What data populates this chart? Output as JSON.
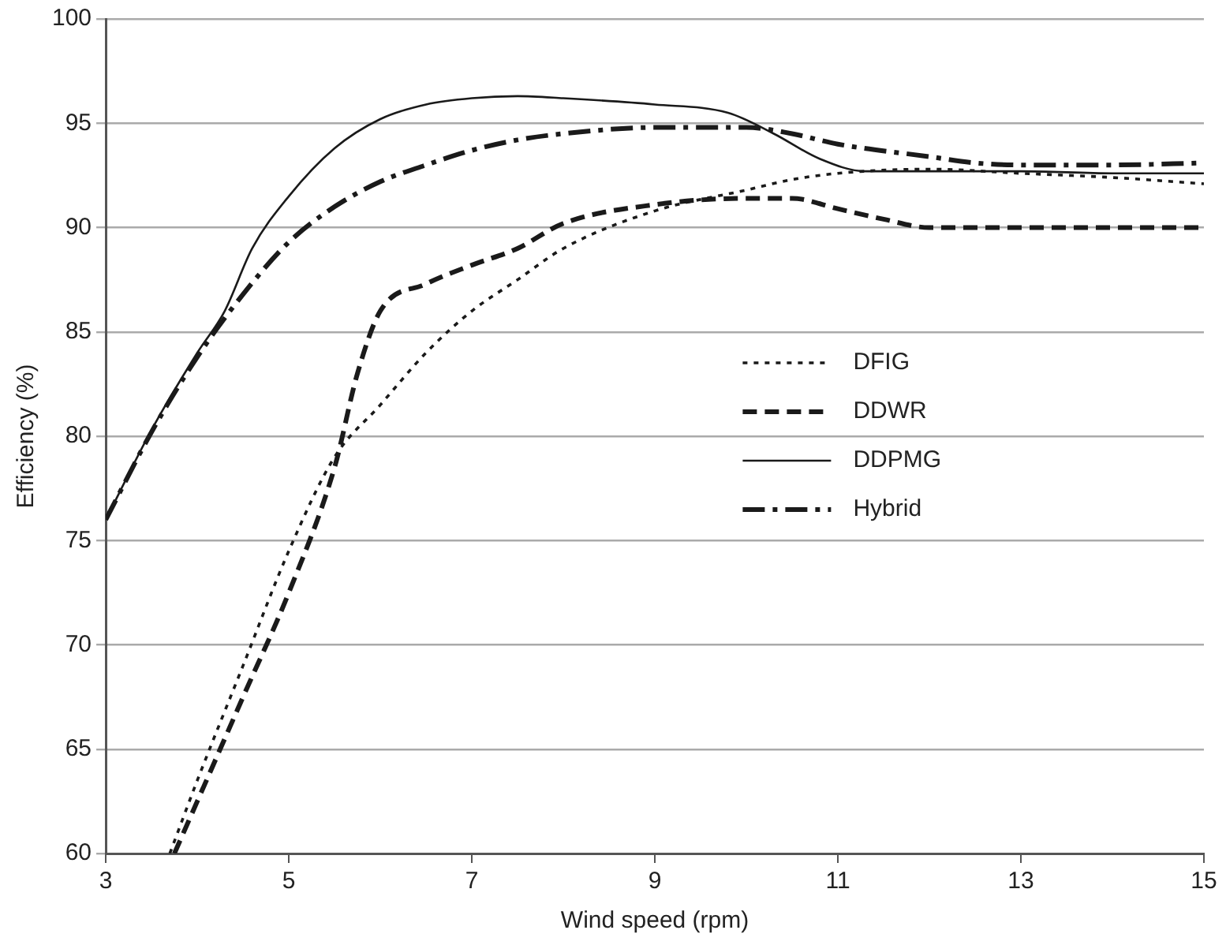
{
  "chart_data": {
    "type": "line",
    "xlabel": "Wind speed (rpm)",
    "ylabel": "Efficiency (%)",
    "xlim": [
      3,
      15
    ],
    "xticks": [
      3,
      5,
      7,
      9,
      11,
      13,
      15
    ],
    "ylim": [
      60,
      100
    ],
    "yticks": [
      60,
      65,
      70,
      75,
      80,
      85,
      90,
      95,
      100
    ],
    "grid": "y",
    "legend": "right",
    "marker": "none",
    "series": [
      {
        "name": "DFIG",
        "color": "#1a1a1a",
        "line_style": "dotted",
        "x": [
          3.7,
          4,
          4.5,
          5,
          5.5,
          6,
          6.5,
          7,
          7.5,
          8,
          9,
          10,
          10.5,
          11,
          12,
          13,
          14,
          15
        ],
        "values": [
          60,
          63.5,
          69,
          74.5,
          79,
          81.5,
          84,
          86,
          87.5,
          89,
          90.8,
          91.8,
          92.3,
          92.6,
          92.8,
          92.6,
          92.4,
          92.1
        ]
      },
      {
        "name": "DDWR",
        "color": "#1a1a1a",
        "line_style": "dashed",
        "x": [
          3.75,
          4,
          4.5,
          5,
          5.5,
          5.75,
          6,
          6.5,
          7,
          7.5,
          8,
          9,
          10,
          10.5,
          11,
          11.5,
          12,
          13,
          14,
          15
        ],
        "values": [
          60,
          62.5,
          67.5,
          72.5,
          78.5,
          83,
          86,
          87.3,
          88.2,
          89,
          90.2,
          91.1,
          91.4,
          91.4,
          90.9,
          90.4,
          90,
          90,
          90,
          90
        ]
      },
      {
        "name": "DDPMG",
        "color": "#1a1a1a",
        "line_style": "solid",
        "x": [
          3,
          3.5,
          4,
          4.3,
          4.6,
          5,
          5.5,
          6,
          6.5,
          7,
          7.5,
          8,
          9,
          9.8,
          10.3,
          10.8,
          11.3,
          12,
          13,
          14,
          15
        ],
        "values": [
          76,
          80.3,
          84,
          86,
          89,
          91.5,
          93.8,
          95.2,
          95.9,
          96.2,
          96.3,
          96.2,
          95.9,
          95.5,
          94.5,
          93.3,
          92.7,
          92.7,
          92.7,
          92.6,
          92.6
        ]
      },
      {
        "name": "Hybrid",
        "color": "#1a1a1a",
        "line_style": "dashdot",
        "x": [
          3,
          3.5,
          4,
          4.5,
          5,
          5.5,
          6,
          6.5,
          7,
          7.5,
          8,
          9,
          10,
          10.5,
          11,
          12,
          12.5,
          13,
          14,
          15
        ],
        "values": [
          76,
          80.2,
          83.8,
          86.8,
          89.3,
          91,
          92.2,
          93,
          93.7,
          94.2,
          94.5,
          94.8,
          94.8,
          94.5,
          94,
          93.4,
          93.1,
          93,
          93,
          93.1
        ]
      }
    ]
  }
}
